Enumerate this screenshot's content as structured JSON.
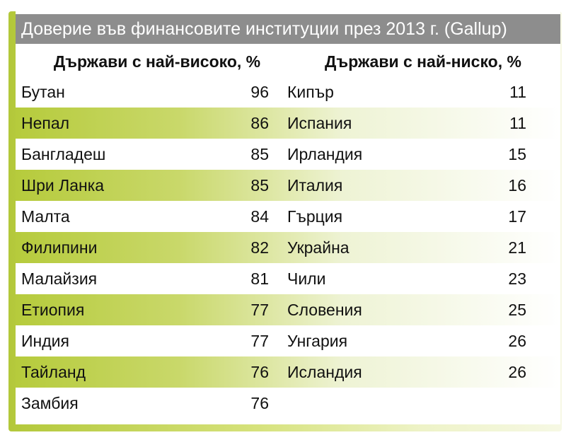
{
  "title": "Доверие във финансовите институции през 2013 г. (Gallup)",
  "headers": [
    "Държави с най-високо, %",
    "Държави с най-ниско, %"
  ],
  "highest": [
    {
      "name": "Бутан",
      "value": 96
    },
    {
      "name": "Непал",
      "value": 86
    },
    {
      "name": "Бангладеш",
      "value": 85
    },
    {
      "name": "Шри Ланка",
      "value": 85
    },
    {
      "name": "Малта",
      "value": 84
    },
    {
      "name": "Филипини",
      "value": 82
    },
    {
      "name": "Малайзия",
      "value": 81
    },
    {
      "name": "Етиопия",
      "value": 77
    },
    {
      "name": "Индия",
      "value": 77
    },
    {
      "name": "Тайланд",
      "value": 76
    },
    {
      "name": "Замбия",
      "value": 76
    }
  ],
  "lowest": [
    {
      "name": "Кипър",
      "value": 11
    },
    {
      "name": "Испания",
      "value": 11
    },
    {
      "name": "Ирландия",
      "value": 15
    },
    {
      "name": "Италия",
      "value": 16
    },
    {
      "name": "Гърция",
      "value": 17
    },
    {
      "name": "Украйна",
      "value": 21
    },
    {
      "name": "Чили",
      "value": 23
    },
    {
      "name": "Словения",
      "value": 25
    },
    {
      "name": "Унгария",
      "value": 26
    },
    {
      "name": "Исландия",
      "value": 26
    }
  ]
}
